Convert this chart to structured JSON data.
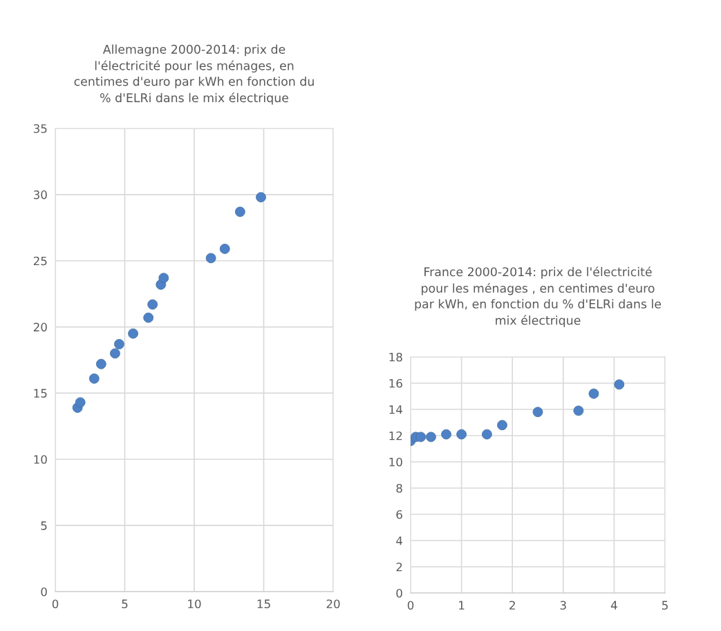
{
  "chart_data": [
    {
      "type": "scatter",
      "title": "Allemagne 2000-2014: prix de\nl'électricité pour les ménages, en\ncentimes d'euro par kWh en fonction du\n% d'ELRi dans le mix électrique",
      "x": [
        1.6,
        1.8,
        2.8,
        3.3,
        4.3,
        4.6,
        5.6,
        6.7,
        7.0,
        7.6,
        7.8,
        11.2,
        12.2,
        13.3,
        14.8
      ],
      "series": [
        {
          "color": "#4f81c7",
          "values": [
            13.9,
            14.3,
            16.1,
            17.2,
            18.0,
            18.7,
            19.5,
            20.7,
            21.7,
            23.2,
            23.7,
            25.2,
            25.9,
            28.7,
            29.8
          ]
        }
      ],
      "xlim": [
        0,
        20
      ],
      "xticks": [
        0,
        5,
        10,
        15,
        20
      ],
      "ylim": [
        0,
        35
      ],
      "yticks": [
        0,
        5,
        10,
        15,
        20,
        25,
        30,
        35
      ],
      "grid": true,
      "marker": "circle"
    },
    {
      "type": "scatter",
      "title": "France 2000-2014: prix de l'électricité\npour les ménages , en centimes d'euro\npar kWh, en fonction du % d'ELRi dans le\nmix électrique",
      "x": [
        0,
        0.1,
        0.2,
        0.4,
        0.7,
        1.0,
        1.5,
        1.8,
        2.5,
        3.3,
        3.6,
        4.1
      ],
      "series": [
        {
          "color": "#4f81c7",
          "values": [
            11.6,
            11.9,
            11.9,
            11.9,
            12.1,
            12.1,
            12.1,
            12.8,
            13.8,
            13.9,
            15.2,
            15.9
          ]
        }
      ],
      "xlim": [
        0,
        5
      ],
      "xticks": [
        0,
        1,
        2,
        3,
        4,
        5
      ],
      "ylim": [
        0,
        18
      ],
      "yticks": [
        0,
        2,
        4,
        6,
        8,
        10,
        12,
        14,
        16,
        18
      ],
      "grid": true,
      "marker": "circle"
    }
  ]
}
